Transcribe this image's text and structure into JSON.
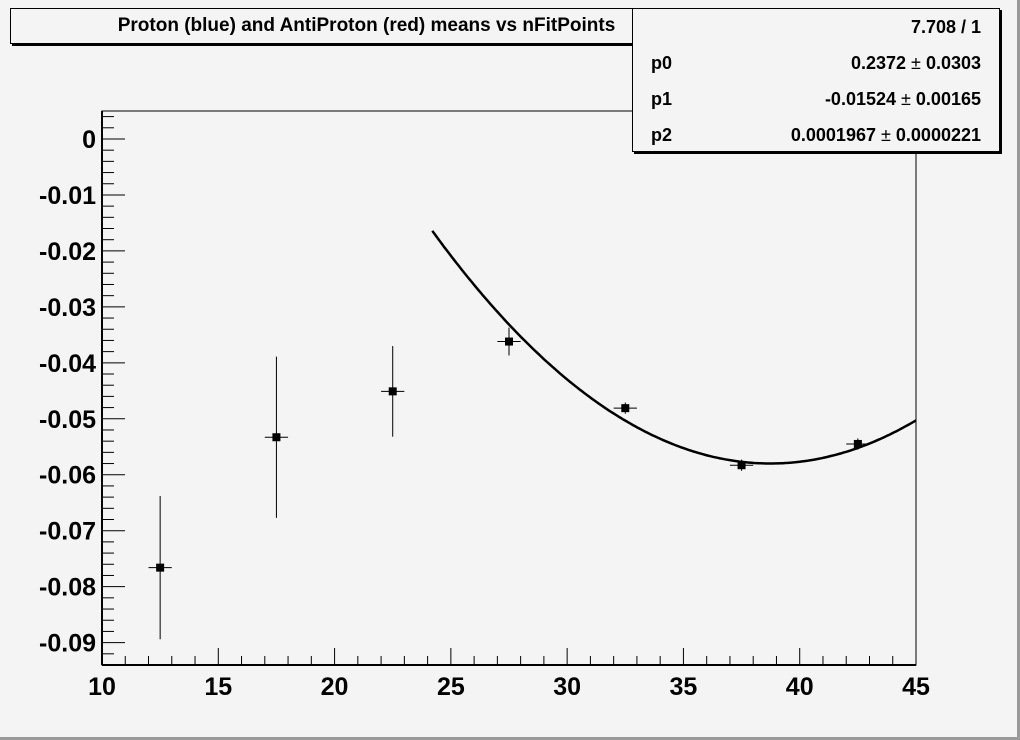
{
  "title": "Proton (blue) and AntiProton (red) means vs nFitPoints",
  "stats": {
    "chi2_ndf": "7.708 / 1",
    "params": [
      {
        "name": "p0",
        "value": "0.2372",
        "error": "0.0303"
      },
      {
        "name": "p1",
        "value": "-0.01524",
        "error": "0.00165"
      },
      {
        "name": "p2",
        "value": "0.0001967",
        "error": "0.0000221"
      }
    ],
    "pm": "±"
  },
  "chart_data": {
    "type": "scatter",
    "title": "Proton (blue) and AntiProton (red) means vs nFitPoints",
    "xlabel": "",
    "ylabel": "",
    "xlim": [
      10,
      45
    ],
    "ylim": [
      -0.094,
      0.005
    ],
    "x_ticks": [
      "10",
      "15",
      "20",
      "25",
      "30",
      "35",
      "40",
      "45"
    ],
    "y_ticks": [
      "0",
      "-0.01",
      "-0.02",
      "-0.03",
      "-0.04",
      "-0.05",
      "-0.06",
      "-0.07",
      "-0.08",
      "-0.09"
    ],
    "grid": false,
    "points": [
      {
        "x": 12.5,
        "y": -0.0766,
        "xerr": 0.5,
        "yerr": 0.0128
      },
      {
        "x": 17.5,
        "y": -0.0533,
        "xerr": 0.5,
        "yerr": 0.0144
      },
      {
        "x": 22.5,
        "y": -0.0451,
        "xerr": 0.5,
        "yerr": 0.0081
      },
      {
        "x": 27.5,
        "y": -0.0362,
        "xerr": 0.5,
        "yerr": 0.0025
      },
      {
        "x": 32.5,
        "y": -0.0481,
        "xerr": 0.5,
        "yerr": 0.001
      },
      {
        "x": 37.5,
        "y": -0.0583,
        "xerr": 0.5,
        "yerr": 0.001
      },
      {
        "x": 42.5,
        "y": -0.0545,
        "xerr": 0.5,
        "yerr": 0.001
      }
    ],
    "fit": {
      "function": "pol2",
      "p0": 0.2372,
      "p1": -0.01524,
      "p2": 0.0001967,
      "x_range": [
        24.2,
        45
      ]
    },
    "colors": {
      "markers": "#000000",
      "fit": "#000000",
      "background": "#f4f4f4"
    }
  }
}
